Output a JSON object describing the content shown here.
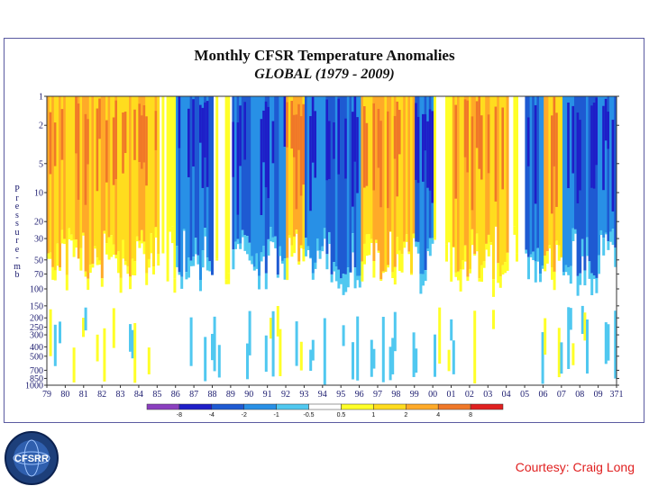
{
  "chart_data": {
    "type": "heatmap",
    "title": "Monthly CFSR Temperature Anomalies",
    "subtitle": "GLOBAL   (1979 - 2009)",
    "ylabel": "Pressure - mb",
    "y_ticks": [
      "1",
      "2",
      "5",
      "10",
      "20",
      "30",
      "50",
      "70",
      "100",
      "150",
      "200",
      "250",
      "300",
      "400",
      "500",
      "700",
      "850",
      "1000"
    ],
    "x_ticks": [
      "79",
      "80",
      "81",
      "82",
      "83",
      "84",
      "85",
      "86",
      "87",
      "88",
      "89",
      "90",
      "91",
      "92",
      "93",
      "94",
      "95",
      "96",
      "97",
      "98",
      "99",
      "00",
      "01",
      "02",
      "03",
      "04",
      "05",
      "06",
      "07",
      "08",
      "09",
      "371"
    ],
    "colorbar": {
      "labels": [
        "-8",
        "-4",
        "-2",
        "-1",
        "-0.5",
        "0.5",
        "1",
        "2",
        "4",
        "8"
      ],
      "colors": [
        "#8b3fbf",
        "#1e1ec8",
        "#1e5ad2",
        "#2890e6",
        "#50c8f0",
        "#ffffff",
        "#ffff28",
        "#ffdc1e",
        "#ffaa28",
        "#f07828",
        "#e02020"
      ]
    },
    "anomaly_columns": {
      "unit": "year",
      "upper_band_pressure_mb": [
        1,
        100
      ],
      "lower_band_pressure_mb": [
        150,
        1000
      ],
      "upper_level_sign_by_year": [
        1,
        1,
        1,
        1,
        1,
        1,
        0,
        -1,
        -1,
        0,
        -1,
        -1,
        -1,
        1,
        -1,
        -1,
        -1,
        1,
        1,
        1,
        -1,
        0,
        1,
        1,
        1,
        0,
        -1,
        1,
        -1,
        -1,
        -1
      ]
    }
  },
  "logo": {
    "text": "CFSRR"
  },
  "credit": "Courtesy: Craig Long"
}
